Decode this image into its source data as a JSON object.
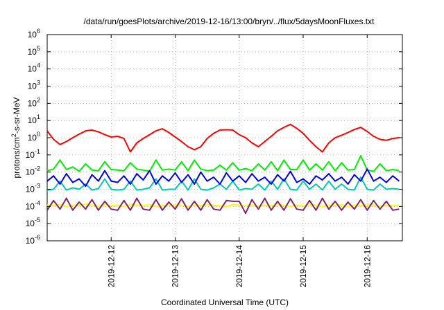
{
  "chart_data": {
    "type": "line",
    "title": "/data/run/goesPlots/archive/2019-12-16/13:00/bryn/../flux/5daysMoonFluxes.txt",
    "xlabel": "Coordinated Universal Time (UTC)",
    "ylabel_parts": [
      "protons/cm",
      "2",
      "-s-sr-MeV"
    ],
    "y_scale": "log",
    "ylim": [
      1e-06,
      1000000.0
    ],
    "xlim_days": [
      0.0,
      5.55
    ],
    "grid": true,
    "y_ticks": [
      {
        "base": "10",
        "exp": "-6",
        "v": -6
      },
      {
        "base": "10",
        "exp": "-5",
        "v": -5
      },
      {
        "base": "10",
        "exp": "-4",
        "v": -4
      },
      {
        "base": "10",
        "exp": "-3",
        "v": -3
      },
      {
        "base": "10",
        "exp": "-2",
        "v": -2
      },
      {
        "base": "10",
        "exp": "-1",
        "v": -1
      },
      {
        "base": "10",
        "exp": "0",
        "v": 0
      },
      {
        "base": "10",
        "exp": "1",
        "v": 1
      },
      {
        "base": "10",
        "exp": "2",
        "v": 2
      },
      {
        "base": "10",
        "exp": "3",
        "v": 3
      },
      {
        "base": "10",
        "exp": "4",
        "v": 4
      },
      {
        "base": "10",
        "exp": "5",
        "v": 5
      },
      {
        "base": "10",
        "exp": "6",
        "v": 6
      }
    ],
    "x_ticks": [
      {
        "label": "2019-12-12",
        "v": 1.0
      },
      {
        "label": "2019-12-13",
        "v": 2.0
      },
      {
        "label": "2019-12-14",
        "v": 3.0
      },
      {
        "label": "2019-12-15",
        "v": 4.0
      },
      {
        "label": "2019-12-16",
        "v": 5.0
      }
    ],
    "series": [
      {
        "color": "#ff0000",
        "x": [
          0.0,
          0.1,
          0.2,
          0.3,
          0.4,
          0.5,
          0.6,
          0.7,
          0.8,
          0.9,
          1.0,
          1.1,
          1.2,
          1.3,
          1.4,
          1.5,
          1.6,
          1.7,
          1.8,
          1.9,
          2.0,
          2.1,
          2.2,
          2.3,
          2.4,
          2.5,
          2.6,
          2.7,
          2.8,
          2.9,
          3.0,
          3.1,
          3.2,
          3.3,
          3.4,
          3.5,
          3.6,
          3.7,
          3.8,
          3.9,
          4.0,
          4.1,
          4.2,
          4.3,
          4.4,
          4.5,
          4.6,
          4.7,
          4.8,
          4.9,
          5.0,
          5.1,
          5.2,
          5.3,
          5.4,
          5.5
        ],
        "y": [
          2.5,
          0.8,
          0.4,
          0.6,
          1.0,
          1.6,
          2.5,
          2.8,
          2.2,
          1.5,
          1.1,
          1.2,
          0.9,
          0.15,
          0.5,
          0.9,
          1.5,
          2.5,
          3.3,
          2.0,
          1.1,
          0.6,
          0.3,
          0.2,
          0.3,
          0.9,
          1.8,
          2.8,
          2.9,
          2.8,
          1.5,
          1.0,
          0.5,
          0.3,
          0.6,
          1.2,
          2.5,
          4.0,
          6.0,
          3.5,
          1.8,
          0.7,
          0.3,
          0.15,
          0.5,
          1.0,
          1.4,
          2.0,
          3.0,
          4.0,
          2.3,
          1.2,
          0.8,
          0.7,
          0.9,
          1.0
        ]
      },
      {
        "color": "#00ee00",
        "x": [
          0.0,
          0.1,
          0.2,
          0.3,
          0.4,
          0.5,
          0.6,
          0.7,
          0.8,
          0.9,
          1.0,
          1.1,
          1.2,
          1.3,
          1.4,
          1.5,
          1.6,
          1.7,
          1.8,
          1.9,
          2.0,
          2.1,
          2.2,
          2.3,
          2.4,
          2.5,
          2.6,
          2.7,
          2.8,
          2.9,
          3.0,
          3.1,
          3.2,
          3.3,
          3.4,
          3.5,
          3.6,
          3.7,
          3.8,
          3.9,
          4.0,
          4.1,
          4.2,
          4.3,
          4.4,
          4.5,
          4.6,
          4.7,
          4.8,
          4.9,
          5.0,
          5.1,
          5.2,
          5.3,
          5.4,
          5.5
        ],
        "y": [
          0.012,
          0.015,
          0.05,
          0.014,
          0.02,
          0.011,
          0.03,
          0.013,
          0.012,
          0.04,
          0.014,
          0.013,
          0.012,
          0.035,
          0.015,
          0.013,
          0.011,
          0.05,
          0.013,
          0.015,
          0.013,
          0.04,
          0.012,
          0.05,
          0.015,
          0.012,
          0.013,
          0.025,
          0.013,
          0.035,
          0.013,
          0.016,
          0.012,
          0.03,
          0.013,
          0.04,
          0.012,
          0.05,
          0.014,
          0.014,
          0.05,
          0.013,
          0.03,
          0.013,
          0.04,
          0.012,
          0.035,
          0.013,
          0.014,
          0.09,
          0.013,
          0.011,
          0.03,
          0.012,
          0.014,
          0.012
        ]
      },
      {
        "color": "#00ccaa",
        "x": [
          0.0,
          0.1,
          0.2,
          0.3,
          0.4,
          0.5,
          0.6,
          0.7,
          0.8,
          0.9,
          1.0,
          1.1,
          1.2,
          1.3,
          1.4,
          1.5,
          1.6,
          1.7,
          1.8,
          1.9,
          2.0,
          2.1,
          2.2,
          2.3,
          2.4,
          2.5,
          2.6,
          2.7,
          2.8,
          2.9,
          3.0,
          3.1,
          3.2,
          3.3,
          3.4,
          3.5,
          3.6,
          3.7,
          3.8,
          3.9,
          4.0,
          4.1,
          4.2,
          4.3,
          4.4,
          4.5,
          4.6,
          4.7,
          4.8,
          4.9,
          5.0,
          5.1,
          5.2,
          5.3,
          5.4,
          5.5
        ],
        "y": [
          0.0009,
          0.001,
          0.003,
          0.0009,
          0.0012,
          0.001,
          0.002,
          0.0009,
          0.0011,
          0.004,
          0.001,
          0.0009,
          0.001,
          0.003,
          0.0009,
          0.001,
          0.0012,
          0.004,
          0.0009,
          0.001,
          0.001,
          0.003,
          0.0009,
          0.004,
          0.001,
          0.0009,
          0.0012,
          0.002,
          0.001,
          0.003,
          0.0009,
          0.0011,
          0.001,
          0.002,
          0.0009,
          0.003,
          0.001,
          0.004,
          0.001,
          0.0009,
          0.003,
          0.001,
          0.002,
          0.0009,
          0.003,
          0.001,
          0.002,
          0.001,
          0.0009,
          0.005,
          0.001,
          0.0009,
          0.002,
          0.001,
          0.0011,
          0.001
        ]
      },
      {
        "color": "#0000ee",
        "x": [
          0.0,
          0.1,
          0.2,
          0.3,
          0.4,
          0.5,
          0.6,
          0.7,
          0.8,
          0.9,
          1.0,
          1.1,
          1.2,
          1.3,
          1.4,
          1.5,
          1.6,
          1.7,
          1.8,
          1.9,
          2.0,
          2.1,
          2.2,
          2.3,
          2.4,
          2.5,
          2.6,
          2.7,
          2.8,
          2.9,
          3.0,
          3.1,
          3.2,
          3.3,
          3.4,
          3.5,
          3.6,
          3.7,
          3.8,
          3.9,
          4.0,
          4.1,
          4.2,
          4.3,
          4.4,
          4.5,
          4.6,
          4.7,
          4.8,
          4.9,
          5.0,
          5.1,
          5.2,
          5.3,
          5.4,
          5.5
        ],
        "y": [
          0.003,
          0.006,
          0.002,
          0.008,
          0.0025,
          0.004,
          0.0015,
          0.007,
          0.003,
          0.012,
          0.003,
          0.0025,
          0.006,
          0.002,
          0.008,
          0.0035,
          0.012,
          0.002,
          0.006,
          0.003,
          0.009,
          0.0025,
          0.007,
          0.002,
          0.01,
          0.003,
          0.005,
          0.002,
          0.009,
          0.003,
          0.006,
          0.0025,
          0.008,
          0.003,
          0.005,
          0.002,
          0.007,
          0.003,
          0.011,
          0.0025,
          0.004,
          0.002,
          0.006,
          0.0035,
          0.008,
          0.003,
          0.005,
          0.002,
          0.007,
          0.003,
          0.015,
          0.003,
          0.005,
          0.0025,
          0.006,
          0.003
        ]
      },
      {
        "color": "#ffff00",
        "x": [
          0.0,
          0.1,
          0.2,
          0.3,
          0.4,
          0.5,
          0.6,
          0.7,
          0.8,
          0.9,
          1.0,
          1.1,
          1.2,
          1.3,
          1.4,
          1.5,
          1.6,
          1.7,
          1.8,
          1.9,
          2.0,
          2.1,
          2.2,
          2.3,
          2.4,
          2.5,
          2.6,
          2.7,
          2.8,
          2.9,
          3.0,
          3.1,
          3.2,
          3.3,
          3.4,
          3.5,
          3.6,
          3.7,
          3.8,
          3.9,
          4.0,
          4.1,
          4.2,
          4.3,
          4.4,
          4.5,
          4.6,
          4.7,
          4.8,
          4.9,
          5.0,
          5.1,
          5.2,
          5.3,
          5.4,
          5.5
        ],
        "y": [
          0.00012,
          0.00011,
          0.00013,
          0.0001,
          0.00012,
          0.00011,
          0.00014,
          0.00012,
          0.0001,
          0.00013,
          0.00011,
          0.00012,
          0.0001,
          0.00013,
          0.00012,
          0.00011,
          0.00013,
          0.0001,
          0.00012,
          0.00011,
          0.00013,
          0.00012,
          0.0001,
          0.00012,
          0.00011,
          0.00013,
          0.00012,
          0.00011,
          0.0001,
          0.00013,
          0.00012,
          0.00011,
          0.00013,
          0.0001,
          0.00012,
          0.00011,
          0.00013,
          0.00012,
          0.0001,
          0.00012,
          0.00011,
          0.00013,
          0.00012,
          0.0001,
          0.00012,
          0.00011,
          0.00013,
          0.0001,
          0.00012,
          0.00011,
          0.00013,
          0.00012,
          0.0001,
          0.00012,
          0.00011,
          0.00012
        ]
      },
      {
        "color": "#882266",
        "x": [
          0.0,
          0.1,
          0.2,
          0.3,
          0.4,
          0.5,
          0.6,
          0.7,
          0.8,
          0.9,
          1.0,
          1.1,
          1.2,
          1.3,
          1.4,
          1.5,
          1.6,
          1.7,
          1.8,
          1.9,
          2.0,
          2.1,
          2.2,
          2.3,
          2.4,
          2.5,
          2.6,
          2.7,
          2.8,
          2.9,
          3.0,
          3.1,
          3.2,
          3.3,
          3.4,
          3.5,
          3.6,
          3.7,
          3.8,
          3.9,
          4.0,
          4.1,
          4.2,
          4.3,
          4.4,
          4.5,
          4.6,
          4.7,
          4.8,
          4.9,
          5.0,
          5.1,
          5.2,
          5.3,
          5.4,
          5.5
        ],
        "y": [
          6e-05,
          0.00022,
          7e-05,
          0.0003,
          6e-05,
          0.00018,
          7e-05,
          0.00025,
          6e-05,
          0.0002,
          7e-05,
          6e-05,
          0.00022,
          6e-05,
          0.0003,
          7e-05,
          6e-05,
          0.00025,
          6e-05,
          0.00018,
          7e-05,
          0.00028,
          6e-05,
          0.0002,
          6e-05,
          0.00025,
          7e-05,
          6e-05,
          0.00022,
          0.0002,
          0.0002,
          4e-05,
          0.00025,
          7e-05,
          0.0003,
          6e-05,
          0.0002,
          6e-05,
          0.00028,
          7e-05,
          6e-05,
          0.00022,
          6e-05,
          0.0003,
          7e-05,
          0.0002,
          6e-05,
          0.00018,
          7e-05,
          0.00025,
          6e-05,
          0.00022,
          7e-05,
          0.0002,
          6e-05,
          7e-05
        ]
      }
    ]
  }
}
